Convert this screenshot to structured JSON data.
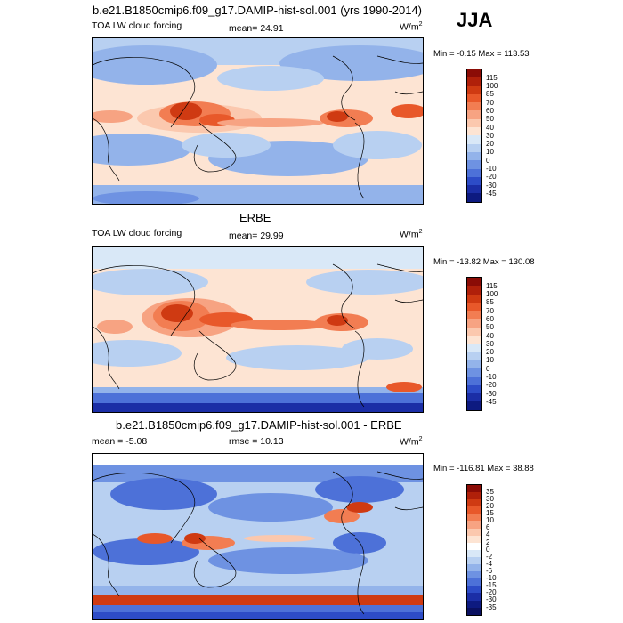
{
  "season": "JJA",
  "panels": [
    {
      "id": "model",
      "title": "b.e21.B1850cmip6.f09_g17.DAMIP-hist-sol.001 (yrs 1990-2014)",
      "left_label": "TOA LW cloud forcing",
      "stat_label": "mean=  24.91",
      "units": "W/m",
      "units_sup": "2",
      "minmax": "Min =  -0.15 Max = 113.53",
      "colorbar_labels": [
        "115",
        "100",
        "85",
        "70",
        "60",
        "50",
        "40",
        "30",
        "20",
        "10",
        "0",
        "-10",
        "-20",
        "-30",
        "-45"
      ],
      "colorbar_colors": [
        "#8b0c06",
        "#b0200a",
        "#cf3a12",
        "#e8582a",
        "#f27d52",
        "#f7a382",
        "#fbc8ae",
        "#fde4d3",
        "#d9e8f7",
        "#b8d0f1",
        "#93b3ea",
        "#6e92e2",
        "#4d71d8",
        "#2d4cc7",
        "#1b2ea6",
        "#0d1a80"
      ]
    },
    {
      "id": "obs",
      "title": "ERBE",
      "left_label": "TOA LW cloud forcing",
      "stat_label": "mean=  29.99",
      "units": "W/m",
      "units_sup": "2",
      "minmax": "Min = -13.82 Max = 130.08",
      "colorbar_labels": [
        "115",
        "100",
        "85",
        "70",
        "60",
        "50",
        "40",
        "30",
        "20",
        "10",
        "0",
        "-10",
        "-20",
        "-30",
        "-45"
      ],
      "colorbar_colors": [
        "#8b0c06",
        "#b0200a",
        "#cf3a12",
        "#e8582a",
        "#f27d52",
        "#f7a382",
        "#fbc8ae",
        "#fde4d3",
        "#d9e8f7",
        "#b8d0f1",
        "#93b3ea",
        "#6e92e2",
        "#4d71d8",
        "#2d4cc7",
        "#1b2ea6",
        "#0d1a80"
      ]
    },
    {
      "id": "diff",
      "title": "b.e21.B1850cmip6.f09_g17.DAMIP-hist-sol.001 - ERBE",
      "left_label": "mean =  -5.08",
      "stat_label": "rmse =  10.13",
      "units": "W/m",
      "units_sup": "2",
      "minmax": "Min = -116.81 Max =  38.88",
      "colorbar_labels": [
        "35",
        "30",
        "20",
        "15",
        "10",
        "6",
        "4",
        "2",
        "0",
        "-2",
        "-4",
        "-6",
        "-10",
        "-15",
        "-20",
        "-30",
        "-35"
      ],
      "colorbar_colors": [
        "#8b0c06",
        "#b0200a",
        "#cf3a12",
        "#e8582a",
        "#f27d52",
        "#f7a382",
        "#fbc8ae",
        "#fde4d3",
        "#ffffff",
        "#d9e8f7",
        "#b8d0f1",
        "#93b3ea",
        "#6e92e2",
        "#4d71d8",
        "#2d4cc7",
        "#1b2ea6",
        "#0d1a80",
        "#0a1060"
      ]
    }
  ]
}
